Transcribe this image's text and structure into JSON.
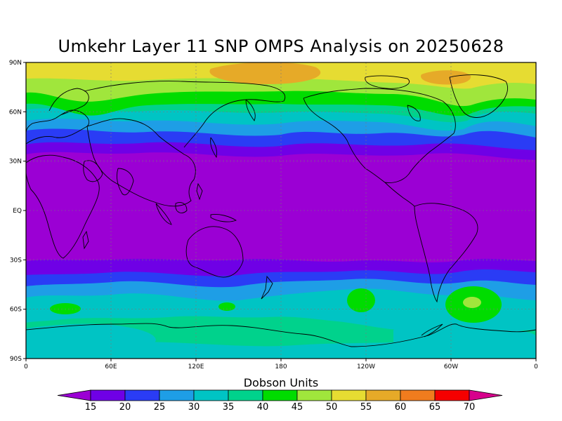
{
  "title": "Umkehr Layer 11 SNP OMPS Analysis on 20250628",
  "colorbar": {
    "label": "Dobson Units",
    "ticks": [
      "15",
      "20",
      "25",
      "30",
      "35",
      "40",
      "45",
      "50",
      "55",
      "60",
      "65",
      "70"
    ],
    "colors": [
      "#9b00d4",
      "#6f00e6",
      "#2a3cf5",
      "#1e9ee6",
      "#00c4c4",
      "#00d28c",
      "#00dc00",
      "#a0e63c",
      "#e6dc32",
      "#e6aa28",
      "#f07c1e",
      "#f50000",
      "#d7008c"
    ]
  },
  "axes": {
    "lat_labels": [
      "90N",
      "60N",
      "30N",
      "EQ",
      "30S",
      "60S",
      "90S"
    ],
    "lon_labels": [
      "0",
      "60E",
      "120E",
      "180",
      "120W",
      "60W",
      "0"
    ]
  },
  "chart_data": {
    "type": "heatmap",
    "title": "Umkehr Layer 11 SNP OMPS Analysis on 20250628",
    "colorbar_label": "Dobson Units",
    "levels": [
      15,
      20,
      25,
      30,
      35,
      40,
      45,
      50,
      55,
      60,
      65,
      70
    ],
    "x_ticks": [
      "0",
      "60E",
      "120E",
      "180",
      "120W",
      "60W",
      "0"
    ],
    "y_ticks": [
      "90N",
      "60N",
      "30N",
      "EQ",
      "30S",
      "60S",
      "90S"
    ],
    "xlim": [
      0,
      360
    ],
    "ylim": [
      -90,
      90
    ],
    "grid": true,
    "zonal_mean_profile": {
      "lat": [
        90,
        75,
        60,
        50,
        40,
        30,
        0,
        -30,
        -40,
        -50,
        -60,
        -75,
        -90
      ],
      "dobson_units": [
        55,
        50,
        45,
        35,
        25,
        15,
        15,
        15,
        25,
        35,
        40,
        35,
        35
      ]
    },
    "features": [
      {
        "name": "polar maximum",
        "lat": 80,
        "lon": 180,
        "value": 57
      },
      {
        "name": "Arctic max near Greenland",
        "lat": 80,
        "lon": 310,
        "value": 62
      },
      {
        "name": "South Atlantic local max",
        "lat": -65,
        "lon": 312,
        "value": 52
      },
      {
        "name": "South Pacific local max",
        "lat": -60,
        "lon": 237,
        "value": 47
      },
      {
        "name": "Southern Indian Ocean local max",
        "lat": -65,
        "lon": 25,
        "value": 47
      }
    ]
  }
}
